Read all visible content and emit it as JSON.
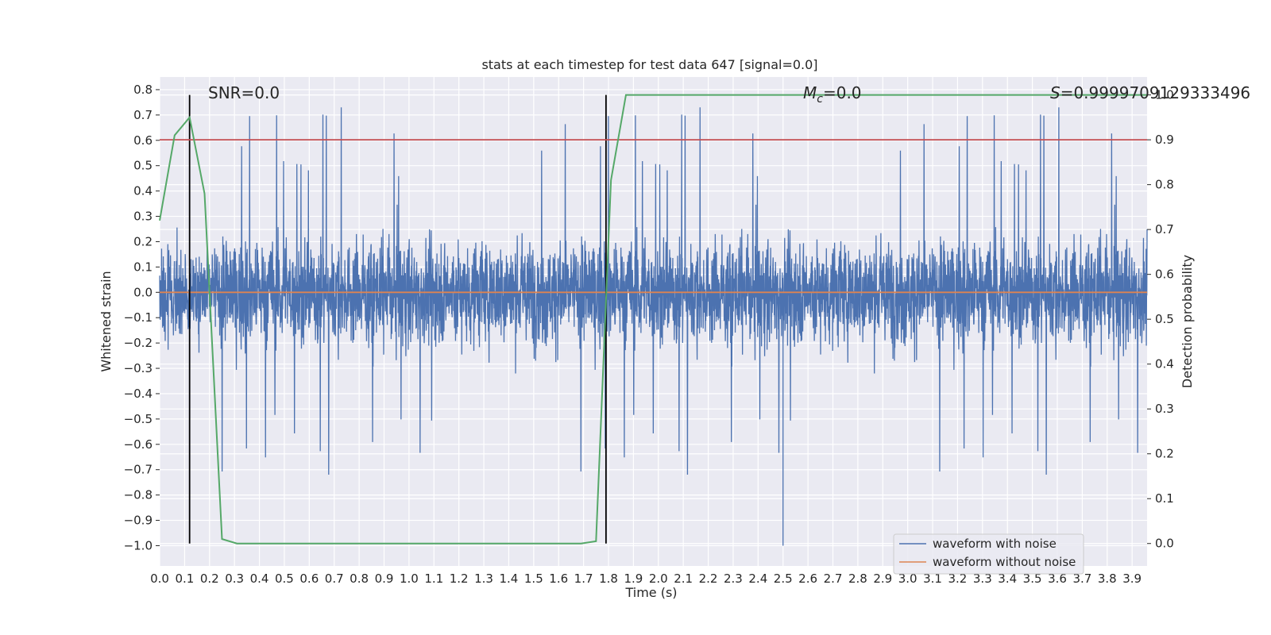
{
  "chart_data": {
    "type": "line",
    "title": "stats at each timestep for test data 647 [signal=0.0]",
    "xlabel": "Time (s)",
    "ylabel": "Whitened strain",
    "y2label": "Detection probability",
    "xlim": [
      0.0,
      3.96
    ],
    "ylim": [
      -1.08,
      0.85
    ],
    "y2lim": [
      -0.05,
      1.04
    ],
    "x_ticks": [
      0.0,
      0.1,
      0.2,
      0.3,
      0.4,
      0.5,
      0.6,
      0.7,
      0.8,
      0.9,
      1.0,
      1.1,
      1.2,
      1.3,
      1.4,
      1.5,
      1.6,
      1.7,
      1.8,
      1.9,
      2.0,
      2.1,
      2.2,
      2.3,
      2.4,
      2.5,
      2.6,
      2.7,
      2.8,
      2.9,
      3.0,
      3.1,
      3.2,
      3.3,
      3.4,
      3.5,
      3.6,
      3.7,
      3.8,
      3.9
    ],
    "x_tick_labels": [
      "0.0",
      "0.1",
      "0.2",
      "0.3",
      "0.4",
      "0.5",
      "0.6",
      "0.7",
      "0.8",
      "0.9",
      "1.0",
      "1.1",
      "1.2",
      "1.3",
      "1.4",
      "1.5",
      "1.6",
      "1.7",
      "1.8",
      "1.9",
      "2.0",
      "2.1",
      "2.2",
      "2.3",
      "2.4",
      "2.5",
      "2.6",
      "2.7",
      "2.8",
      "2.9",
      "3.0",
      "3.1",
      "3.2",
      "3.3",
      "3.4",
      "3.5",
      "3.6",
      "3.7",
      "3.8",
      "3.9"
    ],
    "y_ticks": [
      0.8,
      0.7,
      0.6,
      0.5,
      0.4,
      0.3,
      0.2,
      0.1,
      0.0,
      -0.1,
      -0.2,
      -0.3,
      -0.4,
      -0.5,
      -0.6,
      -0.7,
      -0.8,
      -0.9,
      -1.0
    ],
    "y_tick_labels": [
      "0.8",
      "0.7",
      "0.6",
      "0.5",
      "0.4",
      "0.3",
      "0.2",
      "0.1",
      "0.0",
      "−0.1",
      "−0.2",
      "−0.3",
      "−0.4",
      "−0.5",
      "−0.6",
      "−0.7",
      "−0.8",
      "−0.9",
      "−1.0"
    ],
    "y2_ticks": [
      1.0,
      0.9,
      0.8,
      0.7,
      0.6,
      0.5,
      0.4,
      0.3,
      0.2,
      0.1,
      0.0
    ],
    "y2_tick_labels": [
      "1.0",
      "0.9",
      "0.8",
      "0.7",
      "0.6",
      "0.5",
      "0.4",
      "0.3",
      "0.2",
      "0.1",
      "0.0"
    ],
    "noise_series": {
      "name": "waveform with noise",
      "color": "#4c72b0",
      "samples": 4096,
      "amplitude_range": [
        -1.0,
        0.73
      ]
    },
    "clean_series": {
      "name": "waveform without noise",
      "color": "#dd8452",
      "x": [
        0.0,
        3.96
      ],
      "y": [
        0.0,
        0.0
      ]
    },
    "detection_probability": {
      "name": "detection probability",
      "color": "#55a868",
      "x": [
        0.0,
        0.06,
        0.12,
        0.18,
        0.25,
        0.31,
        1.69,
        1.75,
        1.81,
        1.87,
        3.96
      ],
      "y": [
        0.72,
        0.91,
        0.95,
        0.78,
        0.01,
        0.0,
        0.0,
        0.005,
        0.81,
        1.0,
        1.0
      ]
    },
    "threshold": {
      "y2": 0.9,
      "color": "#c44e52"
    },
    "vertical_markers": {
      "x": [
        0.12,
        1.79
      ],
      "color": "#000000"
    },
    "annotations": {
      "snr": "SNR=0.0",
      "mc_symbol": "M",
      "mc_subscript": "c",
      "mc_value": "=0.0",
      "s_symbol": "S",
      "s_value": "=0.9999709129333496"
    },
    "legend": {
      "position": "lower-right",
      "entries": [
        "waveform with noise",
        "waveform without noise"
      ]
    },
    "grid": true
  }
}
